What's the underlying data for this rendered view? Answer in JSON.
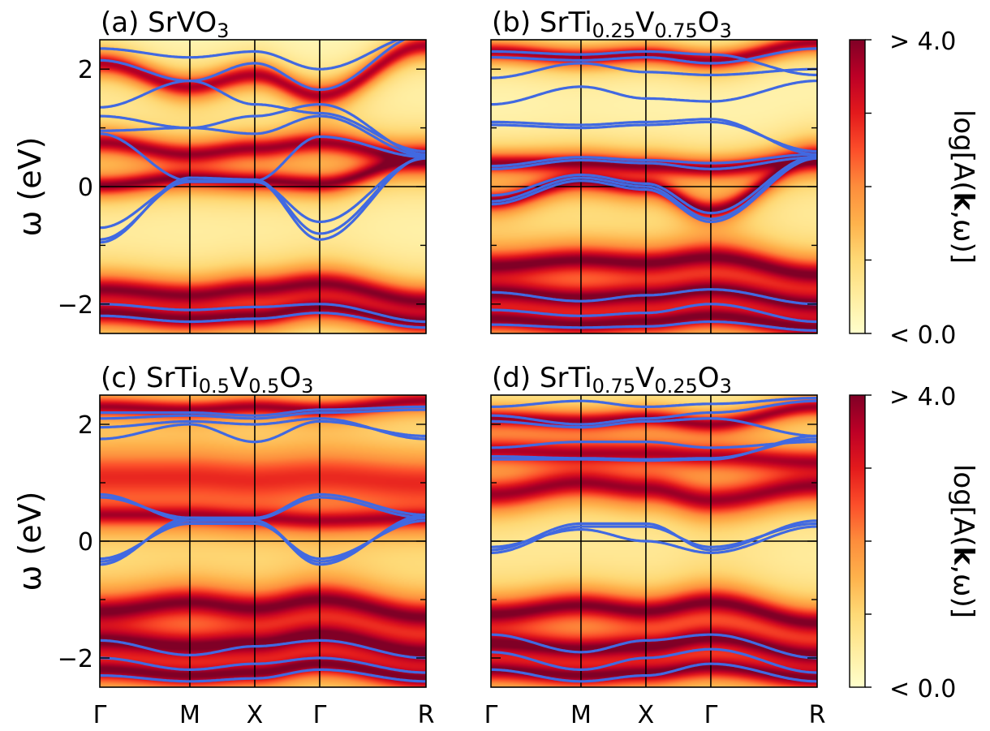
{
  "figure": {
    "colorbar": {
      "label": "log[A(k,ω)]",
      "label_parts": [
        "log[A(",
        "k",
        ",ω)]"
      ],
      "max_label": "> 4.0",
      "min_label": "< 0.0",
      "colormap": "YlOrRd",
      "stops": [
        "#ffffcc",
        "#ffeda0",
        "#fed976",
        "#feb24c",
        "#fd8d3c",
        "#fc4e2a",
        "#e31a1c",
        "#bd0026",
        "#800026"
      ]
    },
    "band_color": "#4169e1"
  },
  "chart_data": [
    {
      "type": "heatmap",
      "title_parts": [
        {
          "t": "(a) SrVO"
        },
        {
          "t": "3",
          "sub": true
        }
      ],
      "ylabel": "ω (eV)",
      "ylim": [
        -2.5,
        2.5
      ],
      "yticks": [
        -2,
        0,
        2
      ],
      "ytick_labels": [
        "−2",
        "0",
        "2"
      ],
      "kpath": [
        "Γ",
        "M",
        "X",
        "Γ",
        "R"
      ],
      "kpos": [
        0,
        0.276,
        0.475,
        0.674,
        1.0
      ],
      "fermi_level": 0,
      "spectral_bands": [
        {
          "w": 0.1,
          "s": 3.4,
          "y": [
            0.02,
            0.15,
            0.1,
            0.05,
            0.5
          ]
        },
        {
          "w": 0.12,
          "s": 3.0,
          "y": [
            0.75,
            0.55,
            0.65,
            0.75,
            0.45
          ]
        },
        {
          "w": 0.12,
          "s": 2.8,
          "y": [
            2.1,
            1.7,
            1.9,
            1.55,
            2.4
          ]
        },
        {
          "w": 0.14,
          "s": 3.2,
          "y": [
            -1.75,
            -1.85,
            -1.75,
            -1.65,
            -1.95
          ]
        },
        {
          "w": 0.12,
          "s": 3.4,
          "y": [
            -2.15,
            -2.25,
            -2.2,
            -2.05,
            -2.3
          ]
        }
      ],
      "bands": [
        [
          -0.9,
          0.1,
          0.1,
          -0.9,
          0.5
        ],
        [
          -0.95,
          0.15,
          0.12,
          -0.8,
          0.5
        ],
        [
          -0.7,
          0.08,
          0.08,
          -0.6,
          0.48
        ],
        [
          0.9,
          0.1,
          0.1,
          0.85,
          0.5
        ],
        [
          0.95,
          1.0,
          0.9,
          1.2,
          0.52
        ],
        [
          1.2,
          1.0,
          1.2,
          1.4,
          0.55
        ],
        [
          1.35,
          1.8,
          1.4,
          1.25,
          0.6
        ],
        [
          2.15,
          1.8,
          2.1,
          1.65,
          2.6
        ],
        [
          2.35,
          2.2,
          2.3,
          2.0,
          2.6
        ],
        [
          -2.0,
          -2.1,
          -2.05,
          -2.0,
          -2.3
        ],
        [
          -2.2,
          -2.3,
          -2.25,
          -2.15,
          -2.4
        ]
      ]
    },
    {
      "type": "heatmap",
      "title_parts": [
        {
          "t": "(b) SrTi"
        },
        {
          "t": "0.25",
          "sub": true
        },
        {
          "t": "V"
        },
        {
          "t": "0.75",
          "sub": true
        },
        {
          "t": "O"
        },
        {
          "t": "3",
          "sub": true
        }
      ],
      "ylabel": "",
      "ylim": [
        -2.5,
        2.5
      ],
      "yticks": [
        -2,
        0,
        2
      ],
      "ytick_labels": [],
      "kpath": [
        "Γ",
        "M",
        "X",
        "Γ",
        "R"
      ],
      "kpos": [
        0,
        0.276,
        0.475,
        0.674,
        1.0
      ],
      "fermi_level": 0,
      "spectral_bands": [
        {
          "w": 0.1,
          "s": 3.4,
          "y": [
            -0.25,
            0.1,
            0.0,
            -0.4,
            0.5
          ]
        },
        {
          "w": 0.1,
          "s": 3.2,
          "y": [
            0.4,
            0.4,
            0.35,
            0.3,
            0.45
          ]
        },
        {
          "w": 0.14,
          "s": 3.5,
          "y": [
            -1.35,
            -1.25,
            -1.3,
            -1.2,
            -1.5
          ]
        },
        {
          "w": 0.14,
          "s": 3.6,
          "y": [
            -1.8,
            -1.9,
            -1.85,
            -1.75,
            -2.0
          ]
        },
        {
          "w": 0.12,
          "s": 3.4,
          "y": [
            -2.25,
            -2.35,
            -2.3,
            -2.2,
            -2.4
          ]
        },
        {
          "w": 0.1,
          "s": 3.0,
          "y": [
            2.3,
            2.2,
            2.25,
            2.15,
            2.45
          ]
        }
      ],
      "bands": [
        [
          -0.25,
          0.15,
          0.0,
          -0.55,
          0.5
        ],
        [
          -0.3,
          0.1,
          -0.05,
          -0.6,
          0.48
        ],
        [
          -0.15,
          0.2,
          0.05,
          -0.45,
          0.52
        ],
        [
          0.3,
          0.45,
          0.4,
          0.3,
          0.5
        ],
        [
          0.35,
          0.5,
          0.45,
          0.4,
          0.55
        ],
        [
          1.05,
          1.0,
          1.05,
          1.1,
          0.6
        ],
        [
          1.1,
          1.05,
          1.1,
          1.15,
          0.55
        ],
        [
          1.4,
          1.7,
          1.5,
          1.45,
          1.8
        ],
        [
          1.85,
          2.1,
          1.95,
          1.9,
          2.0
        ],
        [
          2.2,
          2.15,
          2.2,
          2.1,
          2.35
        ],
        [
          2.3,
          2.25,
          2.3,
          2.25,
          1.9
        ],
        [
          -1.8,
          -1.95,
          -1.85,
          -1.75,
          -2.0
        ],
        [
          -2.1,
          -2.2,
          -2.15,
          -2.0,
          -2.3
        ],
        [
          -2.35,
          -2.4,
          -2.38,
          -2.3,
          -2.45
        ]
      ]
    },
    {
      "type": "heatmap",
      "title_parts": [
        {
          "t": "(c) SrTi"
        },
        {
          "t": "0.5",
          "sub": true
        },
        {
          "t": "V"
        },
        {
          "t": "0.5",
          "sub": true
        },
        {
          "t": "O"
        },
        {
          "t": "3",
          "sub": true
        }
      ],
      "ylabel": "ω (eV)",
      "ylim": [
        -2.5,
        2.5
      ],
      "yticks": [
        -2,
        0,
        2
      ],
      "ytick_labels": [
        "−2",
        "0",
        "2"
      ],
      "kpath": [
        "Γ",
        "M",
        "X",
        "Γ",
        "R"
      ],
      "kpos": [
        0,
        0.276,
        0.475,
        0.674,
        1.0
      ],
      "fermi_level": 0,
      "spectral_bands": [
        {
          "w": 0.35,
          "s": 1.6,
          "y": [
            1.1,
            1.1,
            1.05,
            1.1,
            1.0
          ]
        },
        {
          "w": 0.12,
          "s": 2.6,
          "y": [
            0.45,
            0.45,
            0.4,
            0.35,
            0.4
          ]
        },
        {
          "w": 0.16,
          "s": 3.4,
          "y": [
            -1.2,
            -1.05,
            -1.15,
            -1.0,
            -1.3
          ]
        },
        {
          "w": 0.16,
          "s": 3.6,
          "y": [
            -1.7,
            -1.8,
            -1.75,
            -1.6,
            -1.9
          ]
        },
        {
          "w": 0.12,
          "s": 3.4,
          "y": [
            -2.2,
            -2.3,
            -2.25,
            -2.1,
            -2.35
          ]
        },
        {
          "w": 0.1,
          "s": 3.0,
          "y": [
            2.3,
            2.25,
            2.3,
            2.25,
            2.4
          ]
        }
      ],
      "bands": [
        [
          -0.35,
          0.35,
          0.35,
          -0.4,
          0.45
        ],
        [
          -0.4,
          0.4,
          0.35,
          -0.35,
          0.4
        ],
        [
          -0.3,
          0.3,
          0.3,
          -0.3,
          0.35
        ],
        [
          0.75,
          0.4,
          0.4,
          0.8,
          0.45
        ],
        [
          0.8,
          0.35,
          0.38,
          0.75,
          0.4
        ],
        [
          1.75,
          2.0,
          1.7,
          2.05,
          1.8
        ],
        [
          1.95,
          2.05,
          2.0,
          2.1,
          1.75
        ],
        [
          2.1,
          2.15,
          2.1,
          2.2,
          2.25
        ],
        [
          2.2,
          2.2,
          2.15,
          2.25,
          2.3
        ],
        [
          -1.7,
          -1.95,
          -1.8,
          -1.7,
          -2.0
        ],
        [
          -2.0,
          -2.2,
          -2.1,
          -2.0,
          -2.25
        ],
        [
          -2.3,
          -2.4,
          -2.35,
          -2.2,
          -2.4
        ]
      ]
    },
    {
      "type": "heatmap",
      "title_parts": [
        {
          "t": "(d) SrTi"
        },
        {
          "t": "0.75",
          "sub": true
        },
        {
          "t": "V"
        },
        {
          "t": "0.25",
          "sub": true
        },
        {
          "t": "O"
        },
        {
          "t": "3",
          "sub": true
        }
      ],
      "ylabel": "",
      "ylim": [
        -2.5,
        2.5
      ],
      "yticks": [
        -2,
        0,
        2
      ],
      "ytick_labels": [],
      "kpath": [
        "Γ",
        "M",
        "X",
        "Γ",
        "R"
      ],
      "kpos": [
        0,
        0.276,
        0.475,
        0.674,
        1.0
      ],
      "fermi_level": 0,
      "spectral_bands": [
        {
          "w": 0.16,
          "s": 3.0,
          "y": [
            0.8,
            1.0,
            0.9,
            0.7,
            0.95
          ]
        },
        {
          "w": 0.14,
          "s": 2.6,
          "y": [
            1.55,
            1.5,
            1.5,
            1.45,
            1.35
          ]
        },
        {
          "w": 0.14,
          "s": 3.5,
          "y": [
            -1.25,
            -1.1,
            -1.2,
            -1.05,
            -1.4
          ]
        },
        {
          "w": 0.14,
          "s": 3.6,
          "y": [
            -1.75,
            -1.85,
            -1.8,
            -1.65,
            -1.95
          ]
        },
        {
          "w": 0.12,
          "s": 3.4,
          "y": [
            -2.2,
            -2.3,
            -2.25,
            -2.15,
            -2.35
          ]
        },
        {
          "w": 0.1,
          "s": 3.0,
          "y": [
            2.1,
            2.05,
            2.1,
            2.0,
            2.3
          ]
        }
      ],
      "bands": [
        [
          -0.15,
          0.3,
          0.3,
          -0.15,
          0.35
        ],
        [
          -0.2,
          0.25,
          0.25,
          -0.1,
          0.3
        ],
        [
          -0.1,
          0.2,
          0.0,
          -0.2,
          0.25
        ],
        [
          1.4,
          1.4,
          1.38,
          1.4,
          1.8
        ],
        [
          1.45,
          1.42,
          1.4,
          1.42,
          1.75
        ],
        [
          1.6,
          1.7,
          1.7,
          1.6,
          1.7
        ],
        [
          2.05,
          1.95,
          2.05,
          2.1,
          1.8
        ],
        [
          2.15,
          2.0,
          2.1,
          2.2,
          2.4
        ],
        [
          2.3,
          2.4,
          2.3,
          2.35,
          2.45
        ],
        [
          -1.6,
          -1.9,
          -1.7,
          -1.6,
          -2.0
        ],
        [
          -1.9,
          -2.2,
          -2.0,
          -1.85,
          -2.25
        ],
        [
          -2.2,
          -2.4,
          -2.3,
          -2.1,
          -2.4
        ]
      ]
    }
  ]
}
